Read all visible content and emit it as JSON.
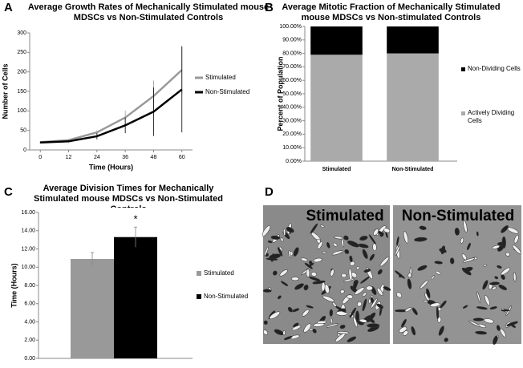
{
  "chart_data": [
    {
      "type": "line",
      "panel_label": "A",
      "title": "Average Growth Rates of Mechanically Stimulated mouse MDSCs vs Non-Stimulated Controls",
      "x_label": "Time (Hours)",
      "y_label": "Number of Cells",
      "x": [
        0,
        12,
        24,
        36,
        48,
        60
      ],
      "xlim": [
        -4.5,
        64.5
      ],
      "xticks": [
        0,
        12,
        24,
        36,
        48,
        60
      ],
      "ylim": [
        0,
        300
      ],
      "yticks": [
        0,
        50,
        100,
        150,
        200,
        250,
        300
      ],
      "series": [
        {
          "name": "Stimulated",
          "color": "#999999",
          "values": [
            20,
            25,
            45,
            83,
            138,
            205
          ],
          "errors": [
            2,
            3,
            5,
            18,
            40,
            62
          ]
        },
        {
          "name": "Non-Stimulated",
          "color": "#000000",
          "values": [
            19,
            22,
            35,
            63,
            98,
            155
          ],
          "errors": [
            2,
            3,
            8,
            20,
            62,
            110
          ]
        }
      ]
    },
    {
      "type": "stacked_bar",
      "panel_label": "B",
      "title": "Average Mitotic Fraction of Mechanically Stimulated mouse MDSCs vs Non-stimulated Controls",
      "y_label": "Percent of Population",
      "categories": [
        "Stimulated",
        "Non-Stimulated"
      ],
      "ylim": [
        0,
        100
      ],
      "yticks": [
        {
          "value": 0,
          "label": "0.00%"
        },
        {
          "value": 10,
          "label": "10.00%"
        },
        {
          "value": 20,
          "label": "20.00%"
        },
        {
          "value": 30,
          "label": "30.00%"
        },
        {
          "value": 40,
          "label": "40.00%"
        },
        {
          "value": 50,
          "label": "50.00%"
        },
        {
          "value": 60,
          "label": "60.00%"
        },
        {
          "value": 70,
          "label": "70.00%"
        },
        {
          "value": 80,
          "label": "80.00%"
        },
        {
          "value": 90,
          "label": "90.00%"
        },
        {
          "value": 100,
          "label": "100.00%"
        }
      ],
      "series": [
        {
          "name": "Actively Dividing Cells",
          "color": "#aaaaaa",
          "values": [
            79,
            80
          ]
        },
        {
          "name": "Non-Dividing Cells",
          "color": "#000000",
          "values": [
            21,
            20
          ]
        }
      ]
    },
    {
      "type": "bar",
      "panel_label": "C",
      "title": "Average Division Times for Mechanically Stimulated mouse MDSCs vs Non-Stimulated Controls",
      "y_label": "Time (Hours)",
      "annotation": "*",
      "ylim": [
        0,
        16
      ],
      "yticks": [
        {
          "value": 0,
          "label": "0.00"
        },
        {
          "value": 2,
          "label": "2.00"
        },
        {
          "value": 4,
          "label": "4.00"
        },
        {
          "value": 6,
          "label": "6.00"
        },
        {
          "value": 8,
          "label": "8.00"
        },
        {
          "value": 10,
          "label": "10.00"
        },
        {
          "value": 12,
          "label": "12.00"
        },
        {
          "value": 14,
          "label": "14.00"
        },
        {
          "value": 16,
          "label": "16.00"
        }
      ],
      "series": [
        {
          "name": "Stimulated",
          "color": "#999999",
          "values": [
            10.9
          ],
          "errors": [
            0.7
          ]
        },
        {
          "name": "Non-Stimulated",
          "color": "#000000",
          "values": [
            13.3
          ],
          "errors": [
            1.1
          ]
        }
      ]
    }
  ],
  "image_panel": {
    "panel_label": "D",
    "images": [
      {
        "label": "Stimulated"
      },
      {
        "label": "Non-Stimulated"
      }
    ]
  }
}
